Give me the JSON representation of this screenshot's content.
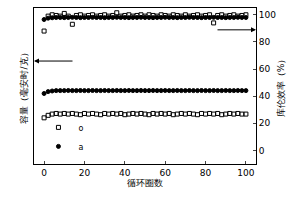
{
  "chart_data": {
    "type": "scatter",
    "xlabel": "循环圈数",
    "ylabel": "容量（毫安时/克）",
    "y2label": "库伦效率（%）",
    "x": [
      0,
      2,
      4,
      6,
      8,
      10,
      12,
      14,
      16,
      18,
      20,
      22,
      24,
      26,
      28,
      30,
      32,
      34,
      36,
      38,
      40,
      42,
      44,
      46,
      48,
      50,
      52,
      54,
      56,
      58,
      60,
      62,
      64,
      66,
      68,
      70,
      72,
      74,
      76,
      78,
      80,
      82,
      84,
      86,
      88,
      90,
      92,
      94,
      96,
      98,
      100
    ],
    "xlim": [
      -5,
      105
    ],
    "xticks": [
      0,
      20,
      40,
      60,
      80,
      100
    ],
    "ylim": [
      -20,
      105
    ],
    "yticks": [],
    "y2lim": [
      -10,
      105
    ],
    "y2ticks": [
      0,
      20,
      40,
      60,
      80,
      100
    ],
    "legend": "lower left",
    "series": [
      {
        "name": "o",
        "axis": "y2",
        "color": "#000000",
        "marker": "square-open",
        "values": [
          88,
          99,
          100,
          99.5,
          99,
          101,
          99,
          93,
          99.5,
          100,
          99,
          99.5,
          100,
          99,
          99.5,
          100,
          99,
          99.5,
          101.5,
          99,
          99.5,
          100,
          99,
          99.5,
          100,
          99,
          100,
          99.5,
          99,
          100,
          99.5,
          99,
          100,
          99.5,
          99,
          100,
          99,
          99.5,
          100,
          99,
          99.5,
          100,
          94,
          99.5,
          100,
          99,
          99.5,
          100,
          99,
          99.5,
          100
        ]
      },
      {
        "name": "a",
        "axis": "y2",
        "color": "#000000",
        "marker": "circle",
        "values": [
          96.5,
          97.5,
          97.8,
          98,
          98,
          97.9,
          98,
          98.1,
          98,
          97.9,
          98,
          98,
          98.1,
          98,
          98,
          97.9,
          98,
          98,
          98.1,
          98,
          98,
          97.9,
          98,
          98,
          98.1,
          98,
          98,
          97.9,
          98,
          98,
          98.1,
          98,
          98,
          97.9,
          98,
          98,
          98.1,
          98,
          98,
          97.9,
          98,
          98,
          98.1,
          98,
          98,
          97.9,
          98,
          98,
          98.1,
          98,
          98
        ]
      },
      {
        "name": "o",
        "axis": "y",
        "color": "#000000",
        "marker": "square-open",
        "values": [
          17,
          19,
          20,
          20.5,
          20,
          20.5,
          20,
          20.5,
          20,
          19.5,
          20.5,
          20,
          20.5,
          20,
          19.5,
          20.5,
          20,
          20.5,
          20,
          20.5,
          19.5,
          20,
          20.5,
          20,
          20.5,
          20,
          19.5,
          20.5,
          20,
          20.5,
          20,
          20.5,
          19.5,
          20,
          20.5,
          20,
          20.5,
          20,
          19.5,
          20.5,
          20,
          20.5,
          20,
          20.5,
          19.5,
          20,
          20.5,
          20,
          20.5,
          20,
          20
        ]
      },
      {
        "name": "a",
        "axis": "y",
        "color": "#000000",
        "marker": "circle",
        "values": [
          36.5,
          38,
          38.5,
          38.8,
          38.8,
          38.8,
          38.9,
          38.8,
          38.8,
          38.9,
          38.8,
          38.8,
          38.9,
          38.8,
          38.8,
          38.9,
          38.8,
          38.8,
          38.9,
          38.8,
          38.8,
          38.9,
          38.8,
          38.8,
          38.9,
          38.8,
          38.8,
          38.9,
          38.8,
          38.8,
          38.9,
          38.8,
          38.8,
          38.9,
          38.8,
          38.8,
          38.9,
          38.8,
          38.8,
          38.9,
          38.8,
          38.8,
          38.9,
          38.8,
          38.8,
          38.9,
          38.8,
          38.8,
          38.9,
          38.8,
          38.8
        ]
      }
    ]
  }
}
